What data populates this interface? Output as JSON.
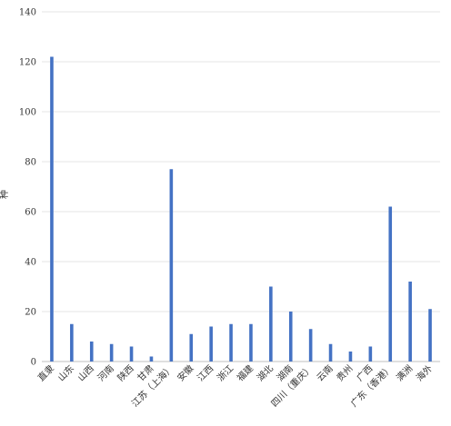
{
  "chart_data": {
    "type": "bar",
    "title": "",
    "xlabel": "",
    "ylabel": "种",
    "ylim": [
      0,
      140
    ],
    "yticks": [
      0,
      20,
      40,
      60,
      80,
      100,
      120,
      140
    ],
    "grid": true,
    "legend": "none",
    "bar_color": "#4472C4",
    "categories": [
      "直隶",
      "山东",
      "山西",
      "河南",
      "陕西",
      "甘肃",
      "江苏（上海）",
      "安徽",
      "江西",
      "浙江",
      "福建",
      "湖北",
      "湖南",
      "四川（重庆）",
      "云南",
      "贵州",
      "广西",
      "广东（香港）",
      "满洲",
      "海外"
    ],
    "series": [
      {
        "values": [
          122,
          15,
          8,
          7,
          6,
          2,
          77,
          11,
          14,
          15,
          15,
          30,
          20,
          13,
          7,
          4,
          6,
          62,
          32,
          21
        ]
      }
    ]
  }
}
